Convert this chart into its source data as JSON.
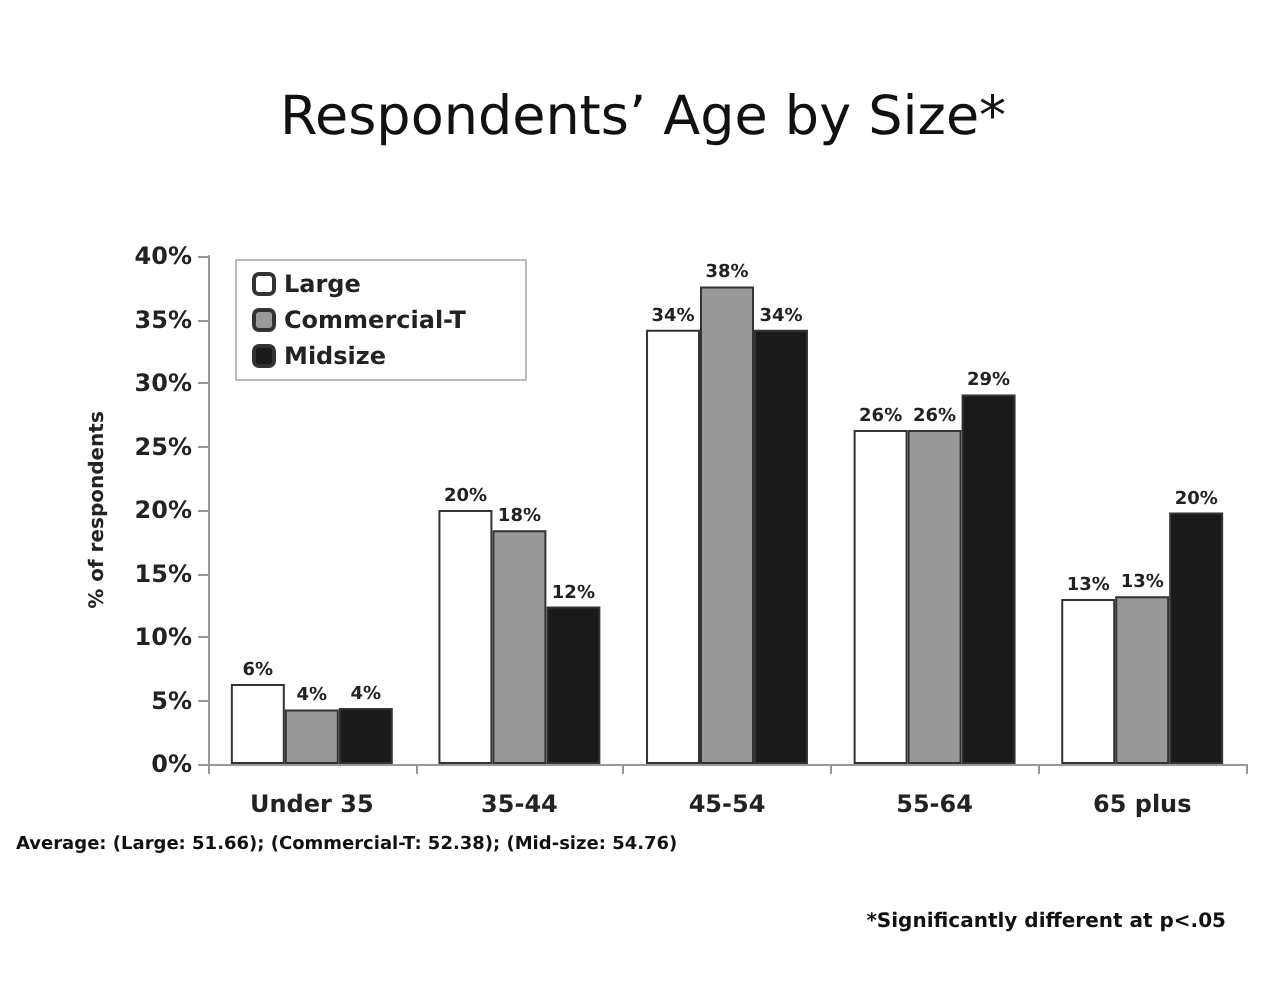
{
  "chart_data": {
    "type": "bar",
    "title": "Respondents’ Age by Size*",
    "ylabel": "% of respondents",
    "categories": [
      "Under 35",
      "35-44",
      "45-54",
      "55-64",
      "65 plus"
    ],
    "series": [
      {
        "name": "Large",
        "color": "#ffffff",
        "values": [
          6.3,
          20,
          34.2,
          26.3,
          13
        ],
        "value_labels": [
          "6%",
          "20%",
          "34%",
          "26%",
          "13%"
        ]
      },
      {
        "name": "Commercial-T",
        "color": "#999999",
        "values": [
          4.3,
          18.4,
          37.6,
          26.3,
          13.2
        ],
        "value_labels": [
          "4%",
          "18%",
          "38%",
          "26%",
          "13%"
        ]
      },
      {
        "name": "Midsize",
        "color": "#1a1a1a",
        "values": [
          4.4,
          12.4,
          34.2,
          29.1,
          19.8
        ],
        "value_labels": [
          "4%",
          "12%",
          "34%",
          "29%",
          "20%"
        ]
      }
    ],
    "ylim": [
      0,
      40
    ],
    "yticks": [
      {
        "value": 0,
        "label": "0%"
      },
      {
        "value": 5,
        "label": "5%"
      },
      {
        "value": 10,
        "label": "10%"
      },
      {
        "value": 15,
        "label": "15%"
      },
      {
        "value": 20,
        "label": "20%"
      },
      {
        "value": 25,
        "label": "25%"
      },
      {
        "value": 30,
        "label": "30%"
      },
      {
        "value": 35,
        "label": "35%"
      },
      {
        "value": 40,
        "label": "40%"
      }
    ],
    "grid": false,
    "legend": "top left",
    "annotations": [
      "Average: (Large: 51.66); (Commercial-T: 52.38); (Mid-size: 54.76)",
      "*Significantly different at p<.05"
    ]
  }
}
